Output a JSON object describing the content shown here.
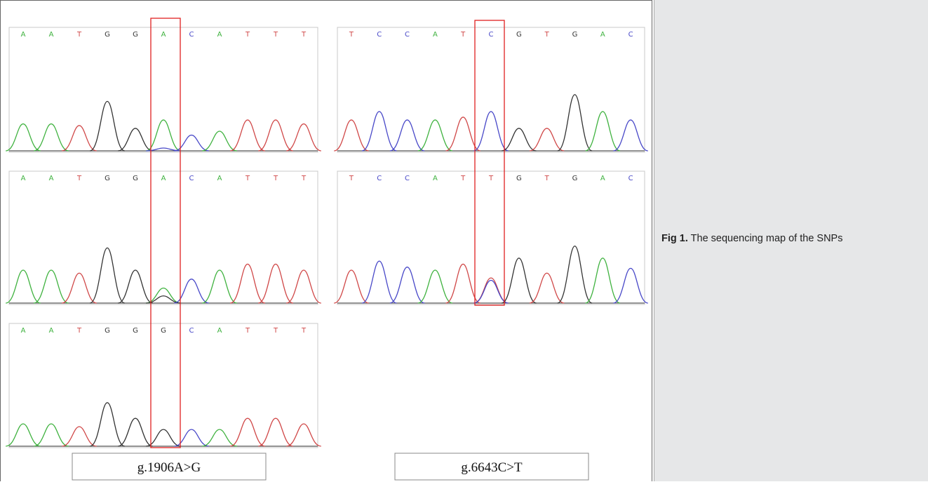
{
  "caption": {
    "label": "Fig 1.",
    "text": "The sequencing map of the SNPs"
  },
  "colors": {
    "A": "#3fb23f",
    "C": "#4848c8",
    "G": "#333333",
    "T": "#d04848",
    "highlight": "#e02020"
  },
  "panels": [
    {
      "id": "snp1-row1",
      "bases": [
        "A",
        "A",
        "T",
        "G",
        "G",
        "A",
        "C",
        "A",
        "T",
        "T",
        "T"
      ],
      "highlight_index": 5,
      "peaks": [
        [
          0,
          0.48,
          "A"
        ],
        [
          1,
          0.48,
          "A"
        ],
        [
          2,
          0.45,
          "T"
        ],
        [
          3,
          0.88,
          "G"
        ],
        [
          4,
          0.4,
          "G"
        ],
        [
          5,
          0.55,
          "A"
        ],
        [
          5,
          0.05,
          "C"
        ],
        [
          6,
          0.28,
          "C"
        ],
        [
          7,
          0.35,
          "A"
        ],
        [
          8,
          0.55,
          "T"
        ],
        [
          9,
          0.55,
          "T"
        ],
        [
          10,
          0.48,
          "T"
        ]
      ]
    },
    {
      "id": "snp1-row2",
      "bases": [
        "A",
        "A",
        "T",
        "G",
        "G",
        "A",
        "C",
        "A",
        "T",
        "T",
        "T"
      ],
      "highlight_index": 5,
      "peaks": [
        [
          0,
          0.55,
          "A"
        ],
        [
          1,
          0.55,
          "A"
        ],
        [
          2,
          0.5,
          "T"
        ],
        [
          3,
          0.92,
          "G"
        ],
        [
          4,
          0.55,
          "G"
        ],
        [
          5,
          0.25,
          "A"
        ],
        [
          5,
          0.12,
          "G"
        ],
        [
          6,
          0.4,
          "C"
        ],
        [
          7,
          0.55,
          "A"
        ],
        [
          8,
          0.65,
          "T"
        ],
        [
          9,
          0.65,
          "T"
        ],
        [
          10,
          0.55,
          "T"
        ]
      ]
    },
    {
      "id": "snp1-row3",
      "bases": [
        "A",
        "A",
        "T",
        "G",
        "G",
        "G",
        "C",
        "A",
        "T",
        "T",
        "T"
      ],
      "highlight_index": 5,
      "peaks": [
        [
          0,
          0.4,
          "A"
        ],
        [
          1,
          0.4,
          "A"
        ],
        [
          2,
          0.35,
          "T"
        ],
        [
          3,
          0.78,
          "G"
        ],
        [
          4,
          0.5,
          "G"
        ],
        [
          5,
          0.3,
          "G"
        ],
        [
          6,
          0.3,
          "C"
        ],
        [
          7,
          0.3,
          "A"
        ],
        [
          8,
          0.5,
          "T"
        ],
        [
          9,
          0.5,
          "T"
        ],
        [
          10,
          0.4,
          "T"
        ]
      ]
    },
    {
      "id": "snp2-row1",
      "bases": [
        "T",
        "C",
        "C",
        "A",
        "T",
        "C",
        "G",
        "T",
        "G",
        "A",
        "C"
      ],
      "highlight_index": 5,
      "peaks": [
        [
          0,
          0.55,
          "T"
        ],
        [
          1,
          0.7,
          "C"
        ],
        [
          2,
          0.55,
          "C"
        ],
        [
          3,
          0.55,
          "A"
        ],
        [
          4,
          0.6,
          "T"
        ],
        [
          5,
          0.7,
          "C"
        ],
        [
          6,
          0.4,
          "G"
        ],
        [
          7,
          0.4,
          "T"
        ],
        [
          8,
          1.0,
          "G"
        ],
        [
          9,
          0.7,
          "A"
        ],
        [
          10,
          0.55,
          "C"
        ]
      ]
    },
    {
      "id": "snp2-row2",
      "bases": [
        "T",
        "C",
        "C",
        "A",
        "T",
        "T",
        "G",
        "T",
        "G",
        "A",
        "C"
      ],
      "highlight_index": 5,
      "peaks": [
        [
          0,
          0.55,
          "T"
        ],
        [
          1,
          0.7,
          "C"
        ],
        [
          2,
          0.6,
          "C"
        ],
        [
          3,
          0.55,
          "A"
        ],
        [
          4,
          0.65,
          "T"
        ],
        [
          5,
          0.42,
          "T"
        ],
        [
          5,
          0.38,
          "C"
        ],
        [
          6,
          0.75,
          "G"
        ],
        [
          7,
          0.5,
          "T"
        ],
        [
          8,
          0.95,
          "G"
        ],
        [
          9,
          0.75,
          "A"
        ],
        [
          10,
          0.58,
          "C"
        ]
      ]
    }
  ],
  "labels": {
    "left": "g.1906A>G",
    "right": "g.6643C>T"
  }
}
